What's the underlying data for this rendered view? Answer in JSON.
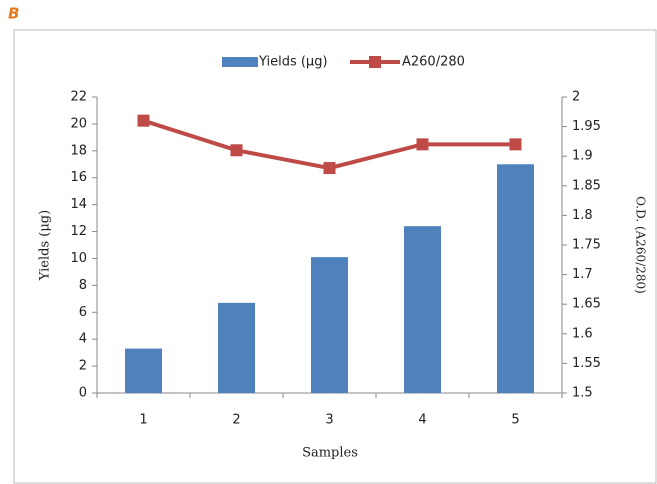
{
  "panel_label": "B",
  "chart_data": {
    "type": "bar_line",
    "categories": [
      "1",
      "2",
      "3",
      "4",
      "5"
    ],
    "x_label": "Samples",
    "y_label": "Yields (μg)",
    "y2_label": "O.D. (A260/280)",
    "series": [
      {
        "name": "Yields (µg)",
        "color": "#4f81bd",
        "values": [
          3.3,
          6.7,
          10.1,
          12.4,
          17.0
        ]
      },
      {
        "name": "A260/280",
        "color": "#be4b48",
        "values": [
          1.96,
          1.91,
          1.88,
          1.92,
          1.92
        ],
        "axis": "y2"
      }
    ],
    "ylim": [
      0,
      22
    ],
    "yticks": [
      0,
      2,
      4,
      6,
      8,
      10,
      12,
      14,
      16,
      18,
      20,
      22
    ],
    "y2lim": [
      1.5,
      2
    ],
    "y2ticks": [
      1.5,
      1.55,
      1.6,
      1.65,
      1.7,
      1.75,
      1.8,
      1.85,
      1.9,
      1.95,
      2
    ],
    "legend": "top"
  }
}
